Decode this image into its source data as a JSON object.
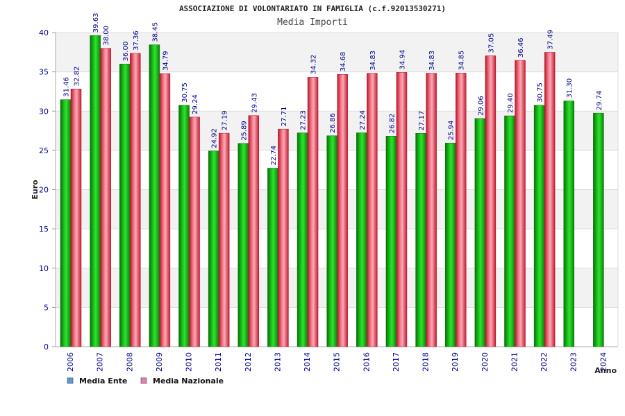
{
  "title": "ASSOCIAZIONE DI VOLONTARIATO IN FAMIGLIA (c.f.92013530271)",
  "subtitle": "Media Importi",
  "chart_data": {
    "type": "bar",
    "xlabel": "Anno",
    "ylabel": "Euro",
    "ylim": [
      0,
      40
    ],
    "yticks": [
      0,
      5,
      10,
      15,
      20,
      25,
      30,
      35,
      40
    ],
    "grid": true,
    "legend_position": "bottom-left",
    "categories": [
      "2006",
      "2007",
      "2008",
      "2009",
      "2010",
      "2011",
      "2012",
      "2013",
      "2014",
      "2015",
      "2016",
      "2017",
      "2018",
      "2019",
      "2020",
      "2021",
      "2022",
      "2023",
      "2024"
    ],
    "series": [
      {
        "name": "Media Ente",
        "color": "#00b000",
        "values": [
          31.46,
          39.63,
          36.0,
          38.45,
          30.75,
          24.92,
          25.89,
          22.74,
          27.23,
          26.86,
          27.24,
          26.82,
          27.17,
          25.94,
          29.06,
          29.4,
          30.75,
          31.3,
          29.74
        ],
        "labels": [
          "31.46",
          "39.63",
          "36.00",
          "38.45",
          "30.75",
          "24.92",
          "25.89",
          "22.74",
          "27.23",
          "26.86",
          "27.24",
          "26.82",
          "27.17",
          "25.94",
          "29.06",
          "29.40",
          "30.75",
          "31.30",
          "29.74"
        ]
      },
      {
        "name": "Media Nazionale",
        "color": "#e8304a",
        "values": [
          32.82,
          38.0,
          37.36,
          34.79,
          29.24,
          27.19,
          29.43,
          27.71,
          34.32,
          34.68,
          34.83,
          34.94,
          34.83,
          34.85,
          37.05,
          36.46,
          37.49,
          null,
          null
        ],
        "labels": [
          "32.82",
          "38.00",
          "37.36",
          "34.79",
          "29.24",
          "27.19",
          "29.43",
          "27.71",
          "34.32",
          "34.68",
          "34.83",
          "34.94",
          "34.83",
          "34.85",
          "37.05",
          "36.46",
          "37.49",
          null,
          null
        ]
      }
    ],
    "legend_colors": [
      "#5b9bd5",
      "#e57fb0"
    ]
  }
}
